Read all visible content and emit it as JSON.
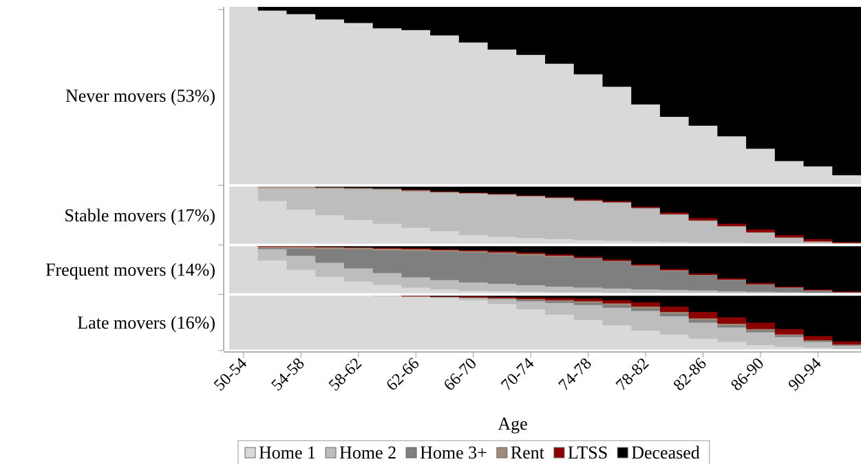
{
  "chart_data": {
    "type": "sequence-index",
    "x_label": "Age",
    "categories": [
      "50-54",
      null,
      "54-58",
      null,
      "58-62",
      null,
      "62-66",
      null,
      "66-70",
      null,
      "70-74",
      null,
      "74-78",
      null,
      "78-82",
      null,
      "82-86",
      null,
      "86-90",
      null,
      "90-94",
      null
    ],
    "ylim": [
      0,
      100
    ],
    "states": [
      {
        "name": "Home 1",
        "color": "#d9d9d9"
      },
      {
        "name": "Home 2",
        "color": "#bdbdbd"
      },
      {
        "name": "Home 3+",
        "color": "#7f7f7f"
      },
      {
        "name": "Rent",
        "color": "#a08a78"
      },
      {
        "name": "LTSS",
        "color": "#8b0000"
      },
      {
        "name": "Deceased",
        "color": "#000000"
      }
    ],
    "groups": [
      {
        "label": "Never movers (53%)",
        "share": 53,
        "stacks": [
          [
            100,
            98,
            96,
            93,
            91,
            88,
            87,
            84,
            80,
            76,
            73,
            68,
            62,
            55,
            45,
            38,
            33,
            27,
            20,
            13,
            10,
            5
          ],
          [
            0,
            0,
            0,
            0,
            0,
            0,
            0,
            0,
            0,
            0,
            0,
            0,
            0,
            0,
            0,
            0,
            0,
            0,
            0,
            0,
            0,
            0
          ],
          [
            0,
            0,
            0,
            0,
            0,
            0,
            0,
            0,
            0,
            0,
            0,
            0,
            0,
            0,
            0,
            0,
            0,
            0,
            0,
            0,
            0,
            0
          ],
          [
            0,
            0,
            0,
            0,
            0,
            0,
            0,
            0,
            0,
            0,
            0,
            0,
            0,
            0,
            0,
            0,
            0,
            0,
            0,
            0,
            0,
            0
          ],
          [
            0,
            0,
            0,
            0,
            0,
            0,
            0,
            0,
            0,
            0,
            0,
            0,
            0,
            0,
            0,
            0,
            0,
            0,
            0,
            0,
            0,
            0
          ],
          [
            0,
            2,
            4,
            7,
            9,
            12,
            13,
            16,
            20,
            24,
            27,
            32,
            38,
            45,
            55,
            62,
            67,
            73,
            80,
            87,
            90,
            95
          ]
        ]
      },
      {
        "label": "Stable movers (17%)",
        "share": 17,
        "stacks": [
          [
            100,
            75,
            60,
            50,
            42,
            35,
            28,
            22,
            15,
            12,
            10,
            8,
            6,
            5,
            4,
            3,
            2,
            2,
            1,
            1,
            0,
            0
          ],
          [
            0,
            23,
            38,
            47,
            54,
            60,
            64,
            68,
            73,
            74,
            73,
            72,
            69,
            67,
            58,
            48,
            38,
            28,
            18,
            9,
            3,
            1
          ],
          [
            0,
            0,
            0,
            0,
            0,
            0,
            0,
            0,
            0,
            0,
            0,
            0,
            0,
            0,
            0,
            0,
            0,
            0,
            0,
            0,
            0,
            0
          ],
          [
            0,
            2,
            2,
            2,
            2,
            2,
            2,
            1,
            1,
            1,
            1,
            1,
            1,
            1,
            1,
            1,
            1,
            1,
            1,
            1,
            1,
            0
          ],
          [
            0,
            0,
            0,
            0,
            0,
            0,
            1,
            1,
            1,
            1,
            1,
            1,
            2,
            2,
            2,
            3,
            4,
            4,
            5,
            4,
            4,
            2
          ],
          [
            0,
            0,
            0,
            1,
            2,
            3,
            5,
            8,
            10,
            12,
            15,
            18,
            22,
            25,
            35,
            45,
            55,
            65,
            75,
            85,
            92,
            97
          ]
        ]
      },
      {
        "label": "Frequent movers (14%)",
        "share": 14,
        "stacks": [
          [
            100,
            70,
            50,
            35,
            25,
            18,
            12,
            8,
            5,
            4,
            3,
            2,
            2,
            1,
            1,
            1,
            1,
            0,
            0,
            0,
            0,
            0
          ],
          [
            0,
            24,
            30,
            30,
            28,
            25,
            22,
            20,
            18,
            16,
            14,
            12,
            10,
            9,
            7,
            6,
            5,
            4,
            3,
            2,
            1,
            1
          ],
          [
            0,
            2,
            15,
            29,
            40,
            48,
            56,
            61,
            64,
            64,
            64,
            63,
            61,
            57,
            49,
            40,
            32,
            24,
            15,
            9,
            4,
            1
          ],
          [
            0,
            3,
            4,
            4,
            4,
            4,
            4,
            3,
            3,
            3,
            3,
            3,
            2,
            2,
            2,
            2,
            1,
            1,
            1,
            1,
            1,
            0
          ],
          [
            0,
            1,
            1,
            1,
            1,
            2,
            2,
            2,
            2,
            3,
            3,
            3,
            3,
            3,
            3,
            3,
            3,
            3,
            3,
            2,
            2,
            2
          ],
          [
            0,
            0,
            0,
            1,
            2,
            3,
            4,
            6,
            8,
            10,
            13,
            17,
            22,
            28,
            38,
            48,
            58,
            68,
            78,
            86,
            92,
            96
          ]
        ]
      },
      {
        "label": "Late movers (16%)",
        "share": 16,
        "stacks": [
          [
            100,
            100,
            100,
            100,
            100,
            99,
            98,
            96,
            92,
            85,
            75,
            65,
            55,
            45,
            35,
            28,
            20,
            14,
            8,
            5,
            3,
            1
          ],
          [
            0,
            0,
            0,
            0,
            0,
            1,
            1,
            2,
            4,
            9,
            15,
            22,
            28,
            33,
            37,
            34,
            30,
            27,
            24,
            18,
            11,
            6
          ],
          [
            0,
            0,
            0,
            0,
            0,
            0,
            0,
            0,
            0,
            1,
            2,
            3,
            4,
            5,
            5,
            5,
            5,
            4,
            4,
            3,
            2,
            1
          ],
          [
            0,
            0,
            0,
            0,
            0,
            0,
            0,
            0,
            1,
            1,
            2,
            2,
            3,
            3,
            3,
            3,
            3,
            3,
            2,
            2,
            1,
            1
          ],
          [
            0,
            0,
            0,
            0,
            0,
            0,
            1,
            1,
            2,
            2,
            3,
            4,
            5,
            6,
            8,
            10,
            12,
            12,
            12,
            10,
            8,
            6
          ],
          [
            0,
            0,
            0,
            0,
            0,
            0,
            0,
            1,
            1,
            2,
            3,
            4,
            5,
            8,
            12,
            20,
            30,
            40,
            50,
            62,
            75,
            85
          ]
        ]
      }
    ]
  }
}
